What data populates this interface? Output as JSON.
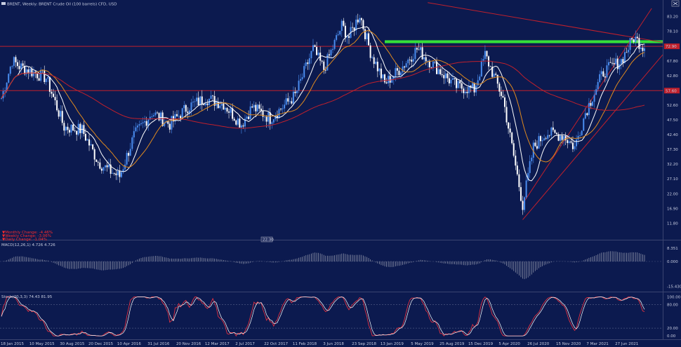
{
  "header": {
    "title": "BRENT, Weekly: BRENT Crude Oil (100 barrels) CFD, USD",
    "toggle_label": "22.30"
  },
  "changes": [
    "▼Monthly Change: -4.46%",
    "▼Weekly Change: -3.06%",
    "▼Daily Change: -1.04%"
  ],
  "colors": {
    "background": "#0c1a4f",
    "bull_candle": "#4a8df0",
    "bear_candle": "#ffffff",
    "ma_fast": "#ffffff",
    "ma_mid": "#e08a1e",
    "ma_slow": "#c0202c",
    "resistance_line": "#c0202c",
    "highlight_band": "#35e03a",
    "macd_hist": "#8e93a8",
    "stoch_k": "#e03040",
    "stoch_d": "#ffffff"
  },
  "chart_data": [
    {
      "type": "candlestick",
      "name": "price",
      "x_labels": [
        "18 Jan 2015",
        "10 May 2015",
        "30 Aug 2015",
        "20 Dec 2015",
        "10 Apr 2016",
        "31 Jul 2016",
        "20 Nov 2016",
        "12 Mar 2017",
        "2 Jul 2017",
        "22 Oct 2017",
        "11 Feb 2018",
        "3 Jun 2018",
        "23 Sep 2018",
        "13 Jan 2019",
        "5 May 2019",
        "25 Aug 2019",
        "15 Dec 2019",
        "5 Apr 2020",
        "26 Jul 2020",
        "15 Nov 2020",
        "7 Mar 2021",
        "27 Jun 2021"
      ],
      "y_ticks": [
        "83.20",
        "78.10",
        "72.90",
        "67.80",
        "62.80",
        "57.60",
        "52.60",
        "47.50",
        "42.40",
        "37.30",
        "32.20",
        "27.10",
        "22.00",
        "16.90",
        "11.80"
      ],
      "ylim": [
        9.0,
        86.0
      ],
      "current_price_label": "72.90",
      "horizontal_levels": [
        72.9,
        57.6
      ],
      "highlight_band": [
        74.0,
        75.0
      ],
      "ma_slow_label": "57.60",
      "anchors": [
        [
          0,
          55
        ],
        [
          6,
          68
        ],
        [
          10,
          66
        ],
        [
          25,
          62
        ],
        [
          35,
          45
        ],
        [
          45,
          44
        ],
        [
          54,
          33
        ],
        [
          60,
          30
        ],
        [
          66,
          28
        ],
        [
          74,
          42
        ],
        [
          84,
          50
        ],
        [
          94,
          46
        ],
        [
          104,
          52
        ],
        [
          114,
          55
        ],
        [
          124,
          53
        ],
        [
          134,
          46
        ],
        [
          140,
          52
        ],
        [
          150,
          48
        ],
        [
          164,
          56
        ],
        [
          174,
          72
        ],
        [
          180,
          65
        ],
        [
          190,
          80
        ],
        [
          194,
          76
        ],
        [
          200,
          84
        ],
        [
          206,
          71
        ],
        [
          214,
          60
        ],
        [
          224,
          66
        ],
        [
          232,
          72
        ],
        [
          242,
          66
        ],
        [
          254,
          59
        ],
        [
          264,
          58
        ],
        [
          270,
          70
        ],
        [
          280,
          55
        ],
        [
          286,
          35
        ],
        [
          291,
          18
        ],
        [
          297,
          38
        ],
        [
          304,
          43
        ],
        [
          314,
          42
        ],
        [
          320,
          38
        ],
        [
          326,
          50
        ],
        [
          336,
          64
        ],
        [
          346,
          68
        ],
        [
          353,
          76
        ],
        [
          358,
          73
        ]
      ],
      "seed": 7
    },
    {
      "type": "histogram",
      "name": "macd",
      "title": "MACD(12,26,1) 4.726 4.726",
      "y_ticks": [
        "8.351",
        "0.000",
        "-15.430"
      ],
      "ylim": [
        -17.0,
        10.0
      ]
    },
    {
      "type": "line",
      "name": "stochastic",
      "title": "Stoch(20,3,3) 74.43 81.95",
      "y_ticks": [
        "100.00",
        "80.00",
        "20.00",
        "0.00"
      ],
      "ylim": [
        -5,
        110
      ],
      "levels": [
        80,
        20
      ]
    }
  ]
}
